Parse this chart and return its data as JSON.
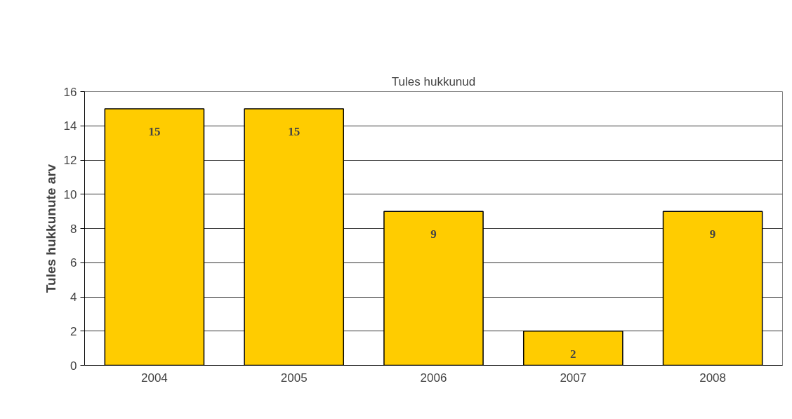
{
  "chart_data": {
    "type": "bar",
    "title": "Tules hukkunud",
    "ylabel": "Tules hukkunute arv",
    "categories": [
      "2004",
      "2005",
      "2006",
      "2007",
      "2008"
    ],
    "values": [
      15,
      15,
      9,
      2,
      9
    ],
    "color": "#ffcc00",
    "ylim": [
      0,
      16
    ],
    "yticks": [
      0,
      2,
      4,
      6,
      8,
      10,
      12,
      14,
      16
    ],
    "grid": "y",
    "data_labels": true
  }
}
